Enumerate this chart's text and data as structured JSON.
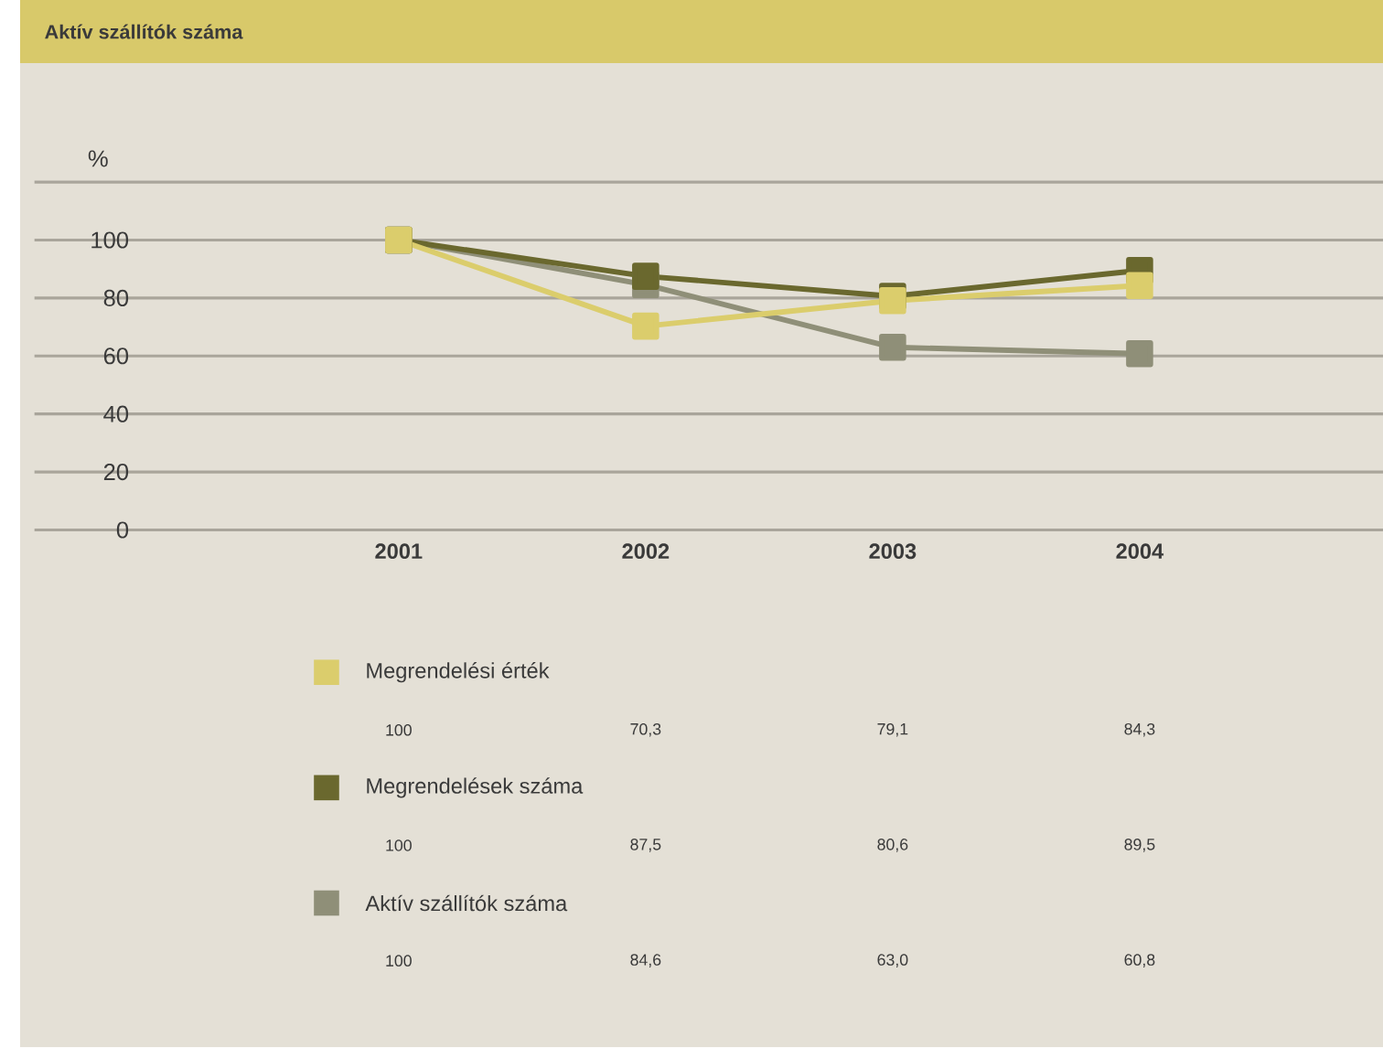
{
  "chart_data": {
    "type": "line",
    "title": "Aktív szállítók száma",
    "ylabel": "%",
    "categories": [
      "2001",
      "2002",
      "2003",
      "2004"
    ],
    "series": [
      {
        "name": "Megrendelési érték",
        "color": "#dbcd6c",
        "values": [
          100,
          70.3,
          79.1,
          84.3
        ],
        "value_labels": [
          "100",
          "70,3",
          "79,1",
          "84,3"
        ]
      },
      {
        "name": "Megrendelések száma",
        "color": "#6a682e",
        "values": [
          100,
          87.5,
          80.6,
          89.5
        ],
        "value_labels": [
          "100",
          "87,5",
          "80,6",
          "89,5"
        ]
      },
      {
        "name": "Aktív szállítók száma",
        "color": "#8f8f78",
        "values": [
          100,
          84.6,
          63.0,
          60.8
        ],
        "value_labels": [
          "100",
          "84,6",
          "63,0",
          "60,8"
        ]
      }
    ],
    "ylim": [
      0,
      120
    ],
    "yticks": [
      0,
      20,
      40,
      60,
      80,
      100,
      {
        "value": 120,
        "label": null
      }
    ],
    "grid": "y",
    "legend": "bottom",
    "marker": "square",
    "line_style": "solid"
  }
}
